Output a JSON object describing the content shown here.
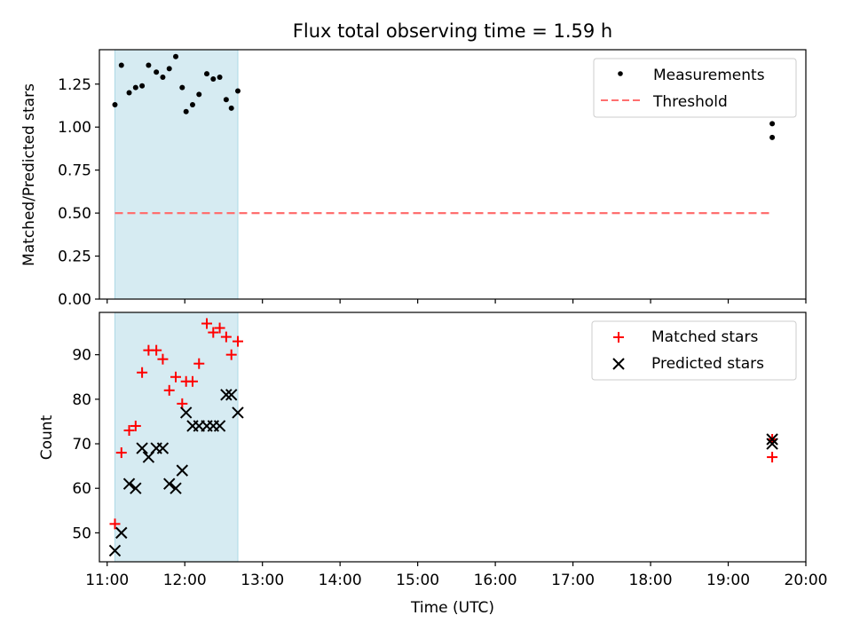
{
  "figure": {
    "title": "Flux total observing time = 1.59 h"
  },
  "colors": {
    "shade": "#add8e6",
    "measurements": "#000000",
    "threshold": "#ff6f6f",
    "matched": "#ff0000",
    "predicted": "#000000"
  },
  "chart_data": [
    {
      "type": "scatter",
      "panel": "top",
      "title": "Flux total observing time = 1.59 h",
      "xlabel": "",
      "ylabel": "Matched/Predicted stars",
      "xlim": [
        "10:54",
        "20:00"
      ],
      "ylim": [
        0,
        1.45
      ],
      "yticks": [
        "0.00",
        "0.25",
        "0.50",
        "0.75",
        "1.00",
        "1.25"
      ],
      "shaded_interval": [
        "11:06",
        "12:41"
      ],
      "legend": "top-right",
      "series": [
        {
          "name": "Measurements",
          "marker": "dot",
          "points": [
            [
              "11:06",
              1.13
            ],
            [
              "11:11",
              1.36
            ],
            [
              "11:17",
              1.2
            ],
            [
              "11:22",
              1.23
            ],
            [
              "11:27",
              1.24
            ],
            [
              "11:32",
              1.36
            ],
            [
              "11:38",
              1.32
            ],
            [
              "11:43",
              1.29
            ],
            [
              "11:48",
              1.34
            ],
            [
              "11:53",
              1.41
            ],
            [
              "11:58",
              1.23
            ],
            [
              "12:01",
              1.09
            ],
            [
              "12:06",
              1.13
            ],
            [
              "12:11",
              1.19
            ],
            [
              "12:17",
              1.31
            ],
            [
              "12:22",
              1.28
            ],
            [
              "12:27",
              1.29
            ],
            [
              "12:32",
              1.16
            ],
            [
              "12:36",
              1.11
            ],
            [
              "12:41",
              1.21
            ],
            [
              "19:34",
              1.02
            ],
            [
              "19:34",
              0.94
            ]
          ]
        },
        {
          "name": "Threshold",
          "marker": "dashed-line",
          "points": [
            [
              "11:06",
              0.5
            ],
            [
              "19:34",
              0.5
            ]
          ]
        }
      ]
    },
    {
      "type": "scatter",
      "panel": "bottom",
      "xlabel": "Time (UTC)",
      "ylabel": "Count",
      "xlim": [
        "10:54",
        "20:00"
      ],
      "ylim": [
        43.5,
        99.5
      ],
      "xticks": [
        "11:00",
        "12:00",
        "13:00",
        "14:00",
        "15:00",
        "16:00",
        "17:00",
        "18:00",
        "19:00",
        "20:00"
      ],
      "yticks": [
        "50",
        "60",
        "70",
        "80",
        "90"
      ],
      "shaded_interval": [
        "11:06",
        "12:41"
      ],
      "legend": "top-right",
      "series": [
        {
          "name": "Matched stars",
          "marker": "plus",
          "points": [
            [
              "11:06",
              52
            ],
            [
              "11:11",
              68
            ],
            [
              "11:17",
              73
            ],
            [
              "11:22",
              74
            ],
            [
              "11:27",
              86
            ],
            [
              "11:32",
              91
            ],
            [
              "11:38",
              91
            ],
            [
              "11:43",
              89
            ],
            [
              "11:48",
              82
            ],
            [
              "11:53",
              85
            ],
            [
              "11:58",
              79
            ],
            [
              "12:01",
              84
            ],
            [
              "12:06",
              84
            ],
            [
              "12:11",
              88
            ],
            [
              "12:17",
              97
            ],
            [
              "12:22",
              95
            ],
            [
              "12:27",
              96
            ],
            [
              "12:32",
              94
            ],
            [
              "12:36",
              90
            ],
            [
              "12:41",
              93
            ],
            [
              "19:34",
              67
            ],
            [
              "19:34",
              71
            ]
          ]
        },
        {
          "name": "Predicted stars",
          "marker": "x",
          "points": [
            [
              "11:06",
              46
            ],
            [
              "11:11",
              50
            ],
            [
              "11:17",
              61
            ],
            [
              "11:22",
              60
            ],
            [
              "11:27",
              69
            ],
            [
              "11:32",
              67
            ],
            [
              "11:38",
              69
            ],
            [
              "11:43",
              69
            ],
            [
              "11:48",
              61
            ],
            [
              "11:53",
              60
            ],
            [
              "11:58",
              64
            ],
            [
              "12:01",
              77
            ],
            [
              "12:06",
              74
            ],
            [
              "12:11",
              74
            ],
            [
              "12:17",
              74
            ],
            [
              "12:22",
              74
            ],
            [
              "12:27",
              74
            ],
            [
              "12:32",
              81
            ],
            [
              "12:36",
              81
            ],
            [
              "12:41",
              77
            ],
            [
              "19:34",
              70
            ],
            [
              "19:34",
              71
            ]
          ]
        }
      ]
    }
  ]
}
